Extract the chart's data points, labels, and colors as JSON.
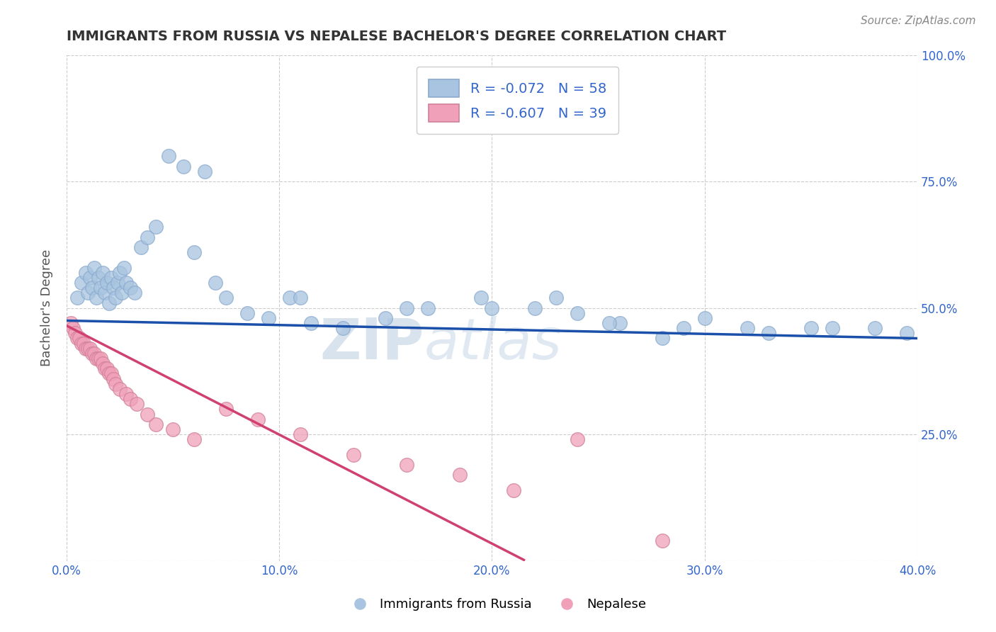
{
  "title": "IMMIGRANTS FROM RUSSIA VS NEPALESE BACHELOR'S DEGREE CORRELATION CHART",
  "source": "Source: ZipAtlas.com",
  "ylabel": "Bachelor's Degree",
  "xlim": [
    0.0,
    0.4
  ],
  "ylim": [
    0.0,
    1.0
  ],
  "xticks": [
    0.0,
    0.1,
    0.2,
    0.3,
    0.4
  ],
  "xticklabels": [
    "0.0%",
    "10.0%",
    "20.0%",
    "30.0%",
    "40.0%"
  ],
  "right_yticks": [
    0.25,
    0.5,
    0.75,
    1.0
  ],
  "right_yticklabels": [
    "25.0%",
    "50.0%",
    "75.0%",
    "100.0%"
  ],
  "blue_R": -0.072,
  "blue_N": 58,
  "pink_R": -0.607,
  "pink_N": 39,
  "blue_color": "#a8c4e0",
  "pink_color": "#f0a0b8",
  "blue_line_color": "#1a4faa",
  "pink_line_color": "#d04070",
  "legend_label_blue": "Immigrants from Russia",
  "legend_label_pink": "Nepalese",
  "watermark_zip": "ZIP",
  "watermark_atlas": "atlas",
  "blue_trend_x0": 0.0,
  "blue_trend_y0": 0.475,
  "blue_trend_x1": 0.4,
  "blue_trend_y1": 0.44,
  "pink_trend_x0": 0.0,
  "pink_trend_y0": 0.465,
  "pink_trend_x1": 0.215,
  "pink_trend_y1": 0.002,
  "blue_scatter_x": [
    0.005,
    0.007,
    0.009,
    0.01,
    0.011,
    0.012,
    0.013,
    0.014,
    0.015,
    0.016,
    0.017,
    0.018,
    0.019,
    0.02,
    0.021,
    0.022,
    0.023,
    0.024,
    0.025,
    0.026,
    0.027,
    0.028,
    0.03,
    0.032,
    0.035,
    0.038,
    0.042,
    0.048,
    0.055,
    0.065,
    0.075,
    0.085,
    0.095,
    0.105,
    0.115,
    0.13,
    0.15,
    0.17,
    0.195,
    0.22,
    0.24,
    0.26,
    0.28,
    0.3,
    0.32,
    0.35,
    0.38,
    0.395,
    0.06,
    0.07,
    0.11,
    0.16,
    0.2,
    0.23,
    0.255,
    0.29,
    0.33,
    0.36
  ],
  "blue_scatter_y": [
    0.52,
    0.55,
    0.57,
    0.53,
    0.56,
    0.54,
    0.58,
    0.52,
    0.56,
    0.54,
    0.57,
    0.53,
    0.55,
    0.51,
    0.56,
    0.54,
    0.52,
    0.55,
    0.57,
    0.53,
    0.58,
    0.55,
    0.54,
    0.53,
    0.62,
    0.64,
    0.66,
    0.8,
    0.78,
    0.77,
    0.52,
    0.49,
    0.48,
    0.52,
    0.47,
    0.46,
    0.48,
    0.5,
    0.52,
    0.5,
    0.49,
    0.47,
    0.44,
    0.48,
    0.46,
    0.46,
    0.46,
    0.45,
    0.61,
    0.55,
    0.52,
    0.5,
    0.5,
    0.52,
    0.47,
    0.46,
    0.45,
    0.46
  ],
  "pink_scatter_x": [
    0.002,
    0.003,
    0.004,
    0.005,
    0.006,
    0.007,
    0.008,
    0.009,
    0.01,
    0.011,
    0.012,
    0.013,
    0.014,
    0.015,
    0.016,
    0.017,
    0.018,
    0.019,
    0.02,
    0.021,
    0.022,
    0.023,
    0.025,
    0.028,
    0.03,
    0.033,
    0.038,
    0.042,
    0.05,
    0.06,
    0.075,
    0.09,
    0.11,
    0.135,
    0.16,
    0.185,
    0.21,
    0.24,
    0.28
  ],
  "pink_scatter_y": [
    0.47,
    0.46,
    0.45,
    0.44,
    0.44,
    0.43,
    0.43,
    0.42,
    0.42,
    0.42,
    0.41,
    0.41,
    0.4,
    0.4,
    0.4,
    0.39,
    0.38,
    0.38,
    0.37,
    0.37,
    0.36,
    0.35,
    0.34,
    0.33,
    0.32,
    0.31,
    0.29,
    0.27,
    0.26,
    0.24,
    0.3,
    0.28,
    0.25,
    0.21,
    0.19,
    0.17,
    0.14,
    0.24,
    0.04
  ],
  "grid_color": "#cccccc",
  "background_color": "#ffffff",
  "title_color": "#333333",
  "axis_label_color": "#555555",
  "tick_color": "#3366cc"
}
